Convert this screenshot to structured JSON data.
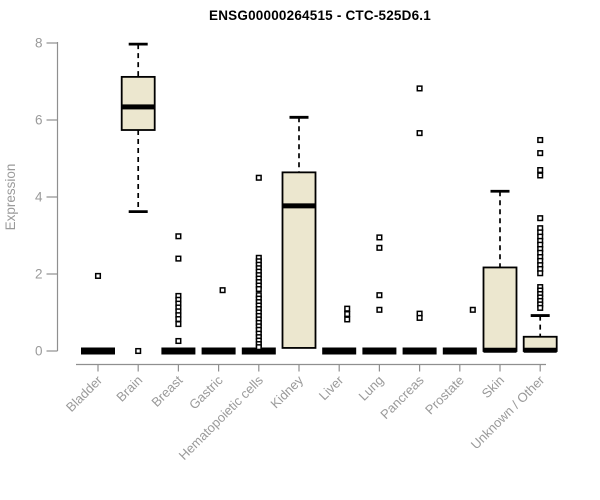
{
  "chart_data": {
    "type": "boxplot",
    "title": "ENSG00000264515 - CTC-525D6.1",
    "ylabel": "Expression",
    "ylim": [
      0,
      8
    ],
    "yticks": [
      0,
      2,
      4,
      6,
      8
    ],
    "grid": false,
    "colors": {
      "box_fill": "#ECE7CF",
      "box_stroke": "#000000",
      "median": "#000000",
      "outlier_stroke": "#000000",
      "outlier_fill": "#ffffff",
      "axis": "#8f8f8f",
      "tick_label": "#9a9a9a",
      "title": "#000000",
      "background": "#ffffff"
    },
    "categories": [
      "Bladder",
      "Brain",
      "Breast",
      "Gastric",
      "Hematopoietic cells",
      "Kidney",
      "Liver",
      "Lung",
      "Pancreas",
      "Prostate",
      "Skin",
      "Unknown / Other"
    ],
    "boxes": [
      {
        "category": "Bladder",
        "whisker_low": 0,
        "q1": 0,
        "median": 0,
        "q3": 0,
        "whisker_high": 0,
        "outliers": [
          1.95
        ],
        "outlier_dx": 0
      },
      {
        "category": "Brain",
        "whisker_low": 3.62,
        "q1": 5.74,
        "median": 6.34,
        "q3": 7.12,
        "whisker_high": 7.97,
        "outliers": [
          0
        ],
        "outlier_dx": 0
      },
      {
        "category": "Breast",
        "whisker_low": 0,
        "q1": 0,
        "median": 0,
        "q3": 0,
        "whisker_high": 0,
        "outliers": [
          2.98,
          2.4,
          1.43,
          1.33,
          1.23,
          1.13,
          1.03,
          0.93,
          0.83,
          0.7,
          0.26
        ],
        "outlier_dx": 0
      },
      {
        "category": "Gastric",
        "whisker_low": 0,
        "q1": 0,
        "median": 0,
        "q3": 0,
        "whisker_high": 0,
        "outliers": [
          1.58
        ],
        "outlier_dx": 4
      },
      {
        "category": "Hematopoietic cells",
        "whisker_low": 0,
        "q1": 0,
        "median": 0,
        "q3": 0,
        "whisker_high": 0,
        "outliers": [
          4.5,
          2.42,
          2.33,
          2.24,
          2.15,
          2.06,
          1.97,
          1.88,
          1.79,
          1.7,
          1.61,
          1.45,
          1.36,
          1.27,
          1.18,
          1.09,
          1.0,
          0.91,
          0.82,
          0.73,
          0.64,
          0.55,
          0.45,
          0.36,
          0.27,
          0.18,
          0.1
        ],
        "outlier_dx": 0
      },
      {
        "category": "Kidney",
        "whisker_low": 0.08,
        "q1": 0.08,
        "median": 3.77,
        "q3": 4.64,
        "whisker_high": 6.07,
        "outliers": [],
        "outlier_dx": 0
      },
      {
        "category": "Liver",
        "whisker_low": 0,
        "q1": 0,
        "median": 0,
        "q3": 0,
        "whisker_high": 0,
        "outliers": [
          1.1,
          0.96,
          0.82
        ],
        "outlier_dx": 8
      },
      {
        "category": "Lung",
        "whisker_low": 0,
        "q1": 0,
        "median": 0,
        "q3": 0,
        "whisker_high": 0,
        "outliers": [
          2.95,
          2.68,
          1.45,
          1.07
        ],
        "outlier_dx": 0
      },
      {
        "category": "Pancreas",
        "whisker_low": 0,
        "q1": 0,
        "median": 0,
        "q3": 0,
        "whisker_high": 0,
        "outliers": [
          6.82,
          5.66,
          0.97,
          0.86
        ],
        "outlier_dx": 0
      },
      {
        "category": "Prostate",
        "whisker_low": 0,
        "q1": 0,
        "median": 0,
        "q3": 0,
        "whisker_high": 0,
        "outliers": [
          1.07
        ],
        "outlier_dx": 13
      },
      {
        "category": "Skin",
        "whisker_low": 0,
        "q1": 0,
        "median": 0.02,
        "q3": 2.17,
        "whisker_high": 4.15,
        "outliers": [],
        "outlier_dx": 0
      },
      {
        "category": "Unknown / Other",
        "whisker_low": 0,
        "q1": 0,
        "median": 0.02,
        "q3": 0.37,
        "whisker_high": 0.92,
        "outliers": [
          5.48,
          5.14,
          4.7,
          4.56,
          3.45,
          3.19,
          3.08,
          2.97,
          2.86,
          2.76,
          2.65,
          2.55,
          2.44,
          2.34,
          2.23,
          2.13,
          2.02,
          1.66,
          1.57,
          1.48,
          1.39,
          1.3,
          1.21,
          1.12
        ],
        "outlier_dx": 0
      }
    ]
  }
}
